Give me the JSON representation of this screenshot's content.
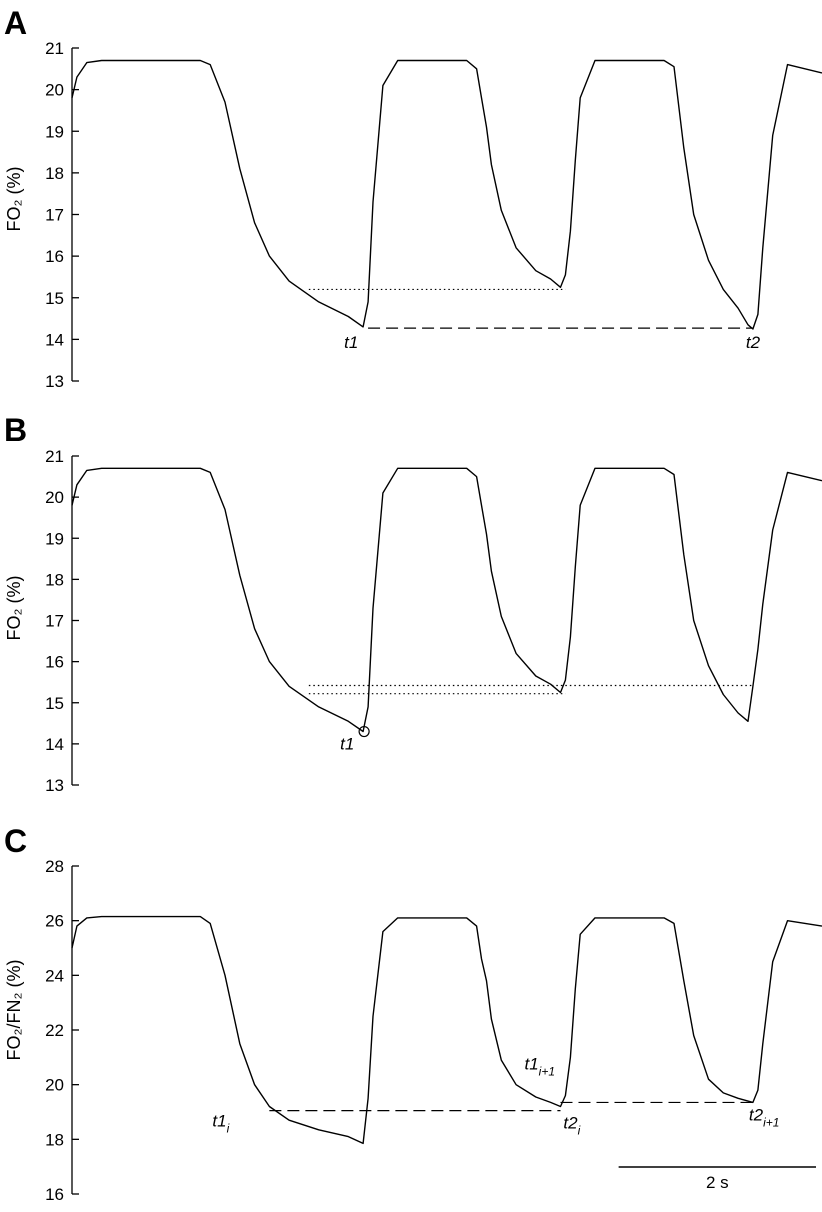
{
  "chart_data": [
    {
      "panel": "A",
      "type": "line",
      "ylabel": "FO₂ (%)",
      "ylim": [
        13,
        21
      ],
      "yticks": [
        13,
        14,
        15,
        16,
        17,
        18,
        19,
        20,
        21
      ],
      "xlim": [
        0,
        7.6
      ],
      "x_units": "s",
      "series": [
        {
          "x": [
            0,
            0.05,
            0.15,
            0.3,
            1.3,
            1.4,
            1.55,
            1.7,
            1.85,
            2.0,
            2.2,
            2.5,
            2.8,
            2.95,
            3.0,
            3.05,
            3.15,
            3.3,
            4.0,
            4.1,
            4.15,
            4.2,
            4.25,
            4.35,
            4.5,
            4.7,
            4.85,
            4.95,
            5.0,
            5.05,
            5.1,
            5.15,
            5.3,
            6.0,
            6.1,
            6.2,
            6.3,
            6.45,
            6.6,
            6.75,
            6.85,
            6.9,
            6.95,
            7.0,
            7.1,
            7.25,
            7.6
          ],
          "y": [
            19.8,
            20.3,
            20.65,
            20.7,
            20.7,
            20.6,
            19.7,
            18.1,
            16.8,
            16.0,
            15.4,
            14.9,
            14.55,
            14.3,
            14.9,
            17.3,
            20.1,
            20.7,
            20.7,
            20.5,
            19.8,
            19.1,
            18.2,
            17.1,
            16.2,
            15.65,
            15.45,
            15.25,
            15.55,
            16.6,
            18.3,
            19.8,
            20.7,
            20.7,
            20.55,
            18.6,
            17.0,
            15.9,
            15.2,
            14.75,
            14.35,
            14.25,
            14.6,
            16.2,
            18.9,
            20.6,
            20.4
          ]
        }
      ],
      "reference_lines": [
        {
          "style": "dotted",
          "y": 15.2,
          "x_start": 2.4,
          "x_end": 5.0
        },
        {
          "style": "dashed",
          "y": 14.27,
          "x_start": 3.0,
          "x_end": 6.9
        }
      ],
      "point_labels": [
        {
          "text": "t1",
          "sub": "",
          "x": 2.96,
          "y": 14.27
        },
        {
          "text": "t2",
          "sub": "",
          "x": 6.89,
          "y": 14.27
        }
      ]
    },
    {
      "panel": "B",
      "type": "line",
      "ylabel": "FO₂ (%)",
      "ylim": [
        13,
        21
      ],
      "yticks": [
        13,
        14,
        15,
        16,
        17,
        18,
        19,
        20,
        21
      ],
      "xlim": [
        0,
        7.6
      ],
      "x_units": "s",
      "series": [
        {
          "x": [
            0,
            0.05,
            0.15,
            0.3,
            1.3,
            1.4,
            1.55,
            1.7,
            1.85,
            2.0,
            2.2,
            2.5,
            2.8,
            2.95,
            3.0,
            3.05,
            3.15,
            3.3,
            4.0,
            4.1,
            4.15,
            4.2,
            4.25,
            4.35,
            4.5,
            4.7,
            4.85,
            4.95,
            5.0,
            5.05,
            5.1,
            5.15,
            5.3,
            6.0,
            6.1,
            6.2,
            6.3,
            6.45,
            6.6,
            6.75,
            6.85,
            6.9,
            6.95,
            7.0,
            7.1,
            7.25,
            7.6
          ],
          "y": [
            19.8,
            20.3,
            20.65,
            20.7,
            20.7,
            20.6,
            19.7,
            18.1,
            16.8,
            16.0,
            15.4,
            14.9,
            14.55,
            14.3,
            14.9,
            17.3,
            20.1,
            20.7,
            20.7,
            20.5,
            19.8,
            19.1,
            18.2,
            17.1,
            16.2,
            15.65,
            15.45,
            15.25,
            15.55,
            16.6,
            18.3,
            19.8,
            20.7,
            20.7,
            20.55,
            18.6,
            17.0,
            15.9,
            15.2,
            14.75,
            14.55,
            15.4,
            16.3,
            17.4,
            19.2,
            20.6,
            20.4
          ]
        }
      ],
      "reference_lines": [
        {
          "style": "dotted",
          "y": 15.42,
          "x_start": 2.4,
          "x_end": 6.9
        },
        {
          "style": "dotted",
          "y": 15.22,
          "x_start": 2.4,
          "x_end": 5.0
        }
      ],
      "markers": [
        {
          "shape": "circle",
          "x": 2.96,
          "y": 14.3
        }
      ],
      "point_labels": [
        {
          "text": "t1",
          "sub": "",
          "x": 2.96,
          "y": 14.3
        }
      ]
    },
    {
      "panel": "C",
      "type": "line",
      "ylabel": "FO₂/FN₂ (%)",
      "ylim": [
        16,
        28
      ],
      "yticks": [
        16,
        18,
        20,
        22,
        24,
        26,
        28
      ],
      "xlim": [
        0,
        7.6
      ],
      "x_units": "s",
      "series": [
        {
          "x": [
            0,
            0.05,
            0.15,
            0.3,
            1.3,
            1.4,
            1.55,
            1.7,
            1.85,
            2.0,
            2.2,
            2.5,
            2.8,
            2.95,
            3.0,
            3.05,
            3.15,
            3.3,
            4.0,
            4.1,
            4.15,
            4.2,
            4.25,
            4.35,
            4.5,
            4.7,
            4.85,
            4.95,
            5.0,
            5.05,
            5.1,
            5.15,
            5.3,
            6.0,
            6.1,
            6.2,
            6.3,
            6.45,
            6.6,
            6.75,
            6.85,
            6.9,
            6.95,
            7.0,
            7.1,
            7.25,
            7.6
          ],
          "y": [
            25.0,
            25.8,
            26.1,
            26.15,
            26.15,
            25.9,
            24.0,
            21.5,
            20.0,
            19.2,
            18.7,
            18.35,
            18.1,
            17.85,
            19.5,
            22.5,
            25.6,
            26.1,
            26.1,
            25.8,
            24.6,
            23.8,
            22.4,
            20.9,
            20.0,
            19.55,
            19.35,
            19.2,
            19.6,
            21.0,
            23.5,
            25.5,
            26.1,
            26.1,
            25.9,
            23.8,
            21.8,
            20.2,
            19.7,
            19.5,
            19.4,
            19.35,
            19.8,
            21.5,
            24.5,
            26.0,
            25.8
          ]
        }
      ],
      "reference_lines": [
        {
          "style": "dashed",
          "y": 19.05,
          "x_start": 2.0,
          "x_end": 4.95
        },
        {
          "style": "dashed",
          "y": 19.35,
          "x_start": 4.95,
          "x_end": 6.9
        }
      ],
      "point_labels": [
        {
          "text": "t1",
          "sub": "i",
          "x": 1.95,
          "y": 19.05
        },
        {
          "text": "t2",
          "sub": "i",
          "x": 5.0,
          "y": 19.05
        },
        {
          "text": "t1",
          "sub": "i+1",
          "x": 4.95,
          "y": 19.9
        },
        {
          "text": "t2",
          "sub": "i+1",
          "x": 6.9,
          "y": 19.35
        }
      ],
      "scale_bar": {
        "label": "2 s",
        "seconds": 2
      }
    }
  ]
}
